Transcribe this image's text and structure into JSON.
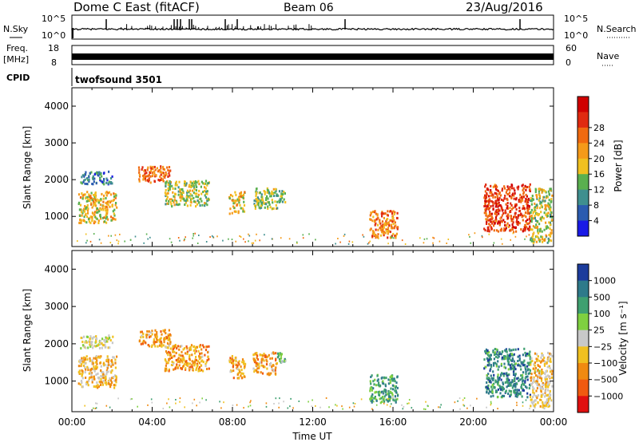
{
  "header": {
    "title": "Dome C East (fitACF)",
    "beam": "Beam 06",
    "date": "23/Aug/2016"
  },
  "strip_labels": {
    "nsky": "N.Sky",
    "nsky_ticks": [
      "10^5",
      "10^0"
    ],
    "nsearch": "N.Search",
    "nsearch_ticks": [
      "10^5",
      "10^0"
    ],
    "freq": "Freq.",
    "freq_unit": "[MHz]",
    "freq_ticks": [
      "18",
      "8"
    ],
    "nave": "Nave",
    "nave_ticks": [
      "60",
      "0"
    ],
    "cpid": "CPID",
    "cpid_value": "twofsound 3501"
  },
  "chart_data": [
    {
      "type": "heatmap",
      "name": "power",
      "ylabel": "Slant Range [km]",
      "xlabel": "",
      "yticks": [
        "1000",
        "2000",
        "3000",
        "4000"
      ],
      "ylim": [
        180,
        4500
      ],
      "xlim": [
        "00:00",
        "24:00"
      ],
      "colorbar": {
        "label": "Power [dB]",
        "ticks": [
          "4",
          "8",
          "12",
          "16",
          "20",
          "24",
          "28"
        ],
        "range": [
          0,
          30
        ],
        "colors": [
          "#1a1ae6",
          "#2b5bb0",
          "#3f8f8f",
          "#5ab04f",
          "#f0c020",
          "#f59a1a",
          "#f06a10",
          "#e02a10",
          "#d00000"
        ]
      },
      "echo_regions": [
        {
          "t0": 0.3,
          "t1": 2.2,
          "r0": 850,
          "r1": 1700,
          "level": 0.55
        },
        {
          "t0": 0.4,
          "t1": 2.0,
          "r0": 1900,
          "r1": 2250,
          "level": 0.2
        },
        {
          "t0": 3.3,
          "t1": 4.9,
          "r0": 1950,
          "r1": 2400,
          "level": 0.75
        },
        {
          "t0": 4.6,
          "t1": 6.8,
          "r0": 1300,
          "r1": 2000,
          "level": 0.45
        },
        {
          "t0": 7.8,
          "t1": 8.6,
          "r0": 1100,
          "r1": 1700,
          "level": 0.55
        },
        {
          "t0": 9.0,
          "t1": 10.2,
          "r0": 1200,
          "r1": 1800,
          "level": 0.4
        },
        {
          "t0": 10.2,
          "t1": 10.6,
          "r0": 1400,
          "r1": 1800,
          "level": 0.35
        },
        {
          "t0": 14.8,
          "t1": 16.2,
          "r0": 450,
          "r1": 1200,
          "level": 0.7
        },
        {
          "t0": 20.5,
          "t1": 22.8,
          "r0": 600,
          "r1": 1900,
          "level": 0.85
        },
        {
          "t0": 22.8,
          "t1": 23.9,
          "r0": 300,
          "r1": 1800,
          "level": 0.45
        }
      ]
    },
    {
      "type": "heatmap",
      "name": "velocity",
      "ylabel": "Slant Range [km]",
      "xlabel": "Time UT",
      "yticks": [
        "1000",
        "2000",
        "3000",
        "4000"
      ],
      "ylim": [
        180,
        4500
      ],
      "xticks": [
        "00:00",
        "04:00",
        "08:00",
        "12:00",
        "16:00",
        "20:00",
        "00:00"
      ],
      "xlim": [
        "00:00",
        "24:00"
      ],
      "colorbar": {
        "label": "Velocity [m s⁻¹]",
        "ticks": [
          "1000",
          "500",
          "100",
          "25",
          "−25",
          "−100",
          "−500",
          "−1000"
        ],
        "range": [
          -1200,
          1200
        ],
        "colors": [
          "#1c3c9c",
          "#2e7a8a",
          "#3fa070",
          "#7fd040",
          "#c8c8c8",
          "#f0c020",
          "#f08a10",
          "#f05a10",
          "#e01010"
        ]
      },
      "echo_regions": [
        {
          "t0": 0.3,
          "t1": 2.2,
          "r0": 850,
          "r1": 1700,
          "level": 0.62
        },
        {
          "t0": 0.4,
          "t1": 2.0,
          "r0": 1900,
          "r1": 2250,
          "level": 0.5
        },
        {
          "t0": 3.3,
          "t1": 4.9,
          "r0": 1950,
          "r1": 2400,
          "level": 0.68
        },
        {
          "t0": 4.6,
          "t1": 6.8,
          "r0": 1300,
          "r1": 2000,
          "level": 0.72
        },
        {
          "t0": 7.8,
          "t1": 8.6,
          "r0": 1100,
          "r1": 1700,
          "level": 0.72
        },
        {
          "t0": 9.0,
          "t1": 10.2,
          "r0": 1200,
          "r1": 1800,
          "level": 0.7
        },
        {
          "t0": 10.2,
          "t1": 10.6,
          "r0": 1400,
          "r1": 1800,
          "level": 0.3
        },
        {
          "t0": 14.8,
          "t1": 16.2,
          "r0": 450,
          "r1": 1200,
          "level": 0.28
        },
        {
          "t0": 20.5,
          "t1": 22.8,
          "r0": 600,
          "r1": 1900,
          "level": 0.18
        },
        {
          "t0": 22.8,
          "t1": 23.9,
          "r0": 300,
          "r1": 1800,
          "level": 0.6
        }
      ]
    }
  ]
}
